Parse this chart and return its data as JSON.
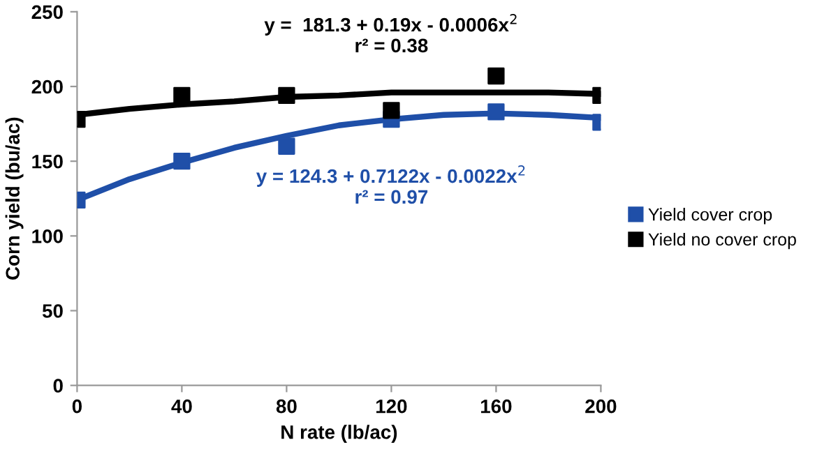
{
  "chart_data": {
    "type": "scatter",
    "xlabel": "N rate (lb/ac)",
    "ylabel": "Corn yield (bu/ac)",
    "x": [
      0,
      40,
      80,
      120,
      160,
      200
    ],
    "series": [
      {
        "name": "Yield cover crop",
        "marker": "square",
        "color": "#1f4fa8",
        "values": [
          124,
          150,
          160,
          178,
          183,
          176
        ]
      },
      {
        "name": "Yield no cover crop",
        "marker": "square",
        "color": "#000000",
        "values": [
          178,
          194,
          194,
          184,
          207,
          194
        ]
      },
      {
        "type": "line",
        "color": "#000000",
        "x": [
          0,
          20,
          40,
          60,
          80,
          100,
          120,
          140,
          160,
          180,
          200
        ],
        "values": [
          181,
          185,
          188,
          190,
          193,
          194,
          196,
          196,
          196,
          196,
          195
        ]
      },
      {
        "type": "line",
        "color": "#1f4fa8",
        "x": [
          0,
          20,
          40,
          60,
          80,
          100,
          120,
          140,
          160,
          180,
          200
        ],
        "values": [
          124,
          138,
          149,
          159,
          167,
          174,
          178,
          181,
          182,
          181,
          179
        ]
      }
    ],
    "annotations": [
      "y =  181.3 + 0.19x - 0.0006x$^{2}$",
      "r² = 0.38",
      "y = 124.3 + 0.7122x - 0.0022x$^{2}$",
      "r² = 0.97"
    ],
    "xlim": [
      0,
      200
    ],
    "xticks": [
      0,
      40,
      80,
      120,
      160,
      200
    ],
    "ylim": [
      0,
      250
    ],
    "yticks": [
      0,
      50,
      100,
      150,
      200,
      250
    ],
    "grid": false,
    "legend": "right"
  }
}
